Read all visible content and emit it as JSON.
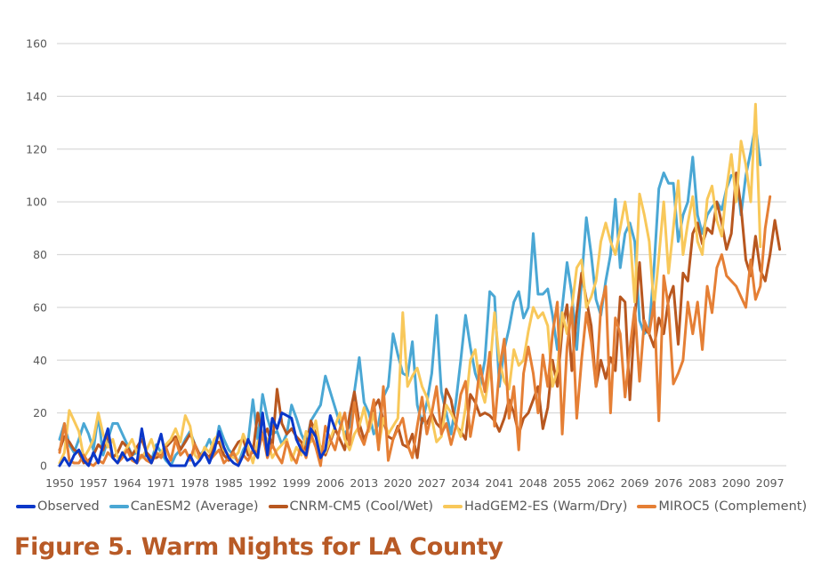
{
  "page": {
    "top_text_fragment": "",
    "figure_title": "Figure 5. Warm Nights for LA County"
  },
  "colors": {
    "Observed": "#0a37c9",
    "CanESM2 (Average)": "#4aa7d4",
    "CNRM-CM5 (Cool/Wet)": "#b8571f",
    "HadGEM2-ES (Warm/Dry)": "#f8c85a",
    "MIROC5 (Complement)": "#e57f35",
    "grid": "#d9d9d9",
    "title": "#b85a26"
  },
  "chart_data": {
    "type": "line",
    "title": "Figure 5. Warm Nights for LA County",
    "xlabel": "",
    "ylabel": "",
    "ylim": [
      0,
      160
    ],
    "yticks": [
      0,
      20,
      40,
      60,
      80,
      100,
      120,
      140,
      160
    ],
    "xlim": [
      1950,
      2100
    ],
    "xtick_labels": [
      "1950",
      "1957",
      "1964",
      "1971",
      "1978",
      "1985",
      "1992",
      "1999",
      "2006",
      "2013",
      "2020",
      "2027",
      "2034",
      "2041",
      "2048",
      "2055",
      "2062",
      "2069",
      "2076",
      "2083",
      "2090",
      "2097"
    ],
    "grid": true,
    "legend_position": "bottom",
    "x_start": 1950,
    "series": [
      {
        "name": "Observed",
        "start_year": 1950,
        "values": [
          0,
          3,
          0,
          4,
          6,
          2,
          0,
          5,
          1,
          8,
          14,
          3,
          1,
          5,
          2,
          3,
          1,
          14,
          4,
          1,
          6,
          12,
          3,
          0,
          0,
          0,
          0,
          4,
          0,
          2,
          5,
          1,
          6,
          13,
          7,
          3,
          1,
          0,
          4,
          10,
          6,
          3,
          20,
          4,
          18,
          14,
          20,
          19,
          18,
          10,
          6,
          4,
          14,
          11,
          3,
          6,
          19,
          14
        ]
      },
      {
        "name": "CanESM2 (Average)",
        "start_year": 1950,
        "values": [
          10,
          16,
          8,
          5,
          10,
          16,
          12,
          6,
          19,
          4,
          10,
          16,
          16,
          12,
          8,
          4,
          5,
          3,
          4,
          2,
          8,
          5,
          2,
          0,
          4,
          6,
          10,
          13,
          8,
          4,
          6,
          10,
          5,
          15,
          10,
          6,
          4,
          1,
          6,
          9,
          25,
          10,
          27,
          18,
          12,
          13,
          8,
          12,
          23,
          18,
          12,
          8,
          17,
          20,
          23,
          34,
          28,
          22,
          16,
          12,
          15,
          28,
          41,
          24,
          20,
          12,
          16,
          26,
          30,
          50,
          42,
          35,
          34,
          47,
          23,
          16,
          24,
          35,
          57,
          28,
          20,
          12,
          24,
          40,
          57,
          45,
          35,
          30,
          40,
          66,
          64,
          30,
          44,
          52,
          62,
          66,
          56,
          60,
          88,
          65,
          65,
          67,
          57,
          44,
          60,
          77,
          65,
          44,
          70,
          94,
          80,
          63,
          57,
          70,
          80,
          101,
          75,
          88,
          92,
          85,
          55,
          50,
          52,
          75,
          105,
          111,
          107,
          107,
          85,
          95,
          100,
          117,
          95,
          88,
          95,
          98,
          100,
          97,
          105,
          110,
          110,
          95,
          110,
          119,
          129,
          114
        ]
      },
      {
        "name": "CNRM-CM5 (Cool/Wet)",
        "start_year": 1950,
        "values": [
          6,
          11,
          9,
          6,
          5,
          1,
          2,
          4,
          8,
          6,
          12,
          3,
          5,
          9,
          7,
          4,
          7,
          10,
          5,
          3,
          3,
          4,
          7,
          9,
          11,
          6,
          9,
          12,
          8,
          4,
          5,
          3,
          8,
          9,
          4,
          2,
          6,
          9,
          10,
          4,
          5,
          20,
          11,
          14,
          7,
          29,
          16,
          12,
          14,
          11,
          9,
          6,
          17,
          12,
          7,
          4,
          9,
          14,
          10,
          6,
          19,
          28,
          16,
          10,
          14,
          22,
          25,
          17,
          11,
          10,
          15,
          8,
          7,
          12,
          3,
          18,
          16,
          20,
          16,
          14,
          29,
          25,
          15,
          13,
          10,
          27,
          24,
          19,
          20,
          19,
          17,
          13,
          18,
          25,
          20,
          12,
          18,
          20,
          25,
          30,
          14,
          22,
          40,
          30,
          52,
          61,
          36,
          58,
          73,
          63,
          53,
          30,
          40,
          33,
          41,
          36,
          64,
          62,
          25,
          56,
          77,
          52,
          50,
          45,
          56,
          50,
          63,
          68,
          46,
          73,
          70,
          88,
          92,
          84,
          90,
          88,
          100,
          92,
          82,
          88,
          111,
          98,
          78,
          72,
          87,
          74,
          70,
          80,
          93,
          82
        ]
      },
      {
        "name": "HadGEM2-ES (Warm/Dry)",
        "start_year": 1950,
        "values": [
          1,
          5,
          21,
          17,
          13,
          3,
          6,
          10,
          20,
          12,
          7,
          10,
          3,
          4,
          7,
          10,
          5,
          3,
          6,
          10,
          4,
          5,
          8,
          10,
          14,
          9,
          19,
          15,
          4,
          2,
          7,
          5,
          10,
          12,
          6,
          4,
          3,
          5,
          12,
          7,
          1,
          9,
          12,
          10,
          3,
          6,
          8,
          10,
          2,
          7,
          4,
          13,
          9,
          17,
          6,
          5,
          10,
          15,
          20,
          10,
          6,
          12,
          15,
          22,
          13,
          20,
          7,
          18,
          12,
          15,
          18,
          58,
          30,
          34,
          37,
          30,
          26,
          18,
          9,
          11,
          23,
          20,
          16,
          11,
          22,
          40,
          44,
          30,
          24,
          36,
          58,
          40,
          32,
          29,
          44,
          38,
          40,
          51,
          60,
          56,
          58,
          53,
          30,
          36,
          58,
          50,
          60,
          75,
          78,
          60,
          64,
          70,
          85,
          92,
          85,
          80,
          90,
          100,
          88,
          62,
          103,
          95,
          85,
          60,
          79,
          100,
          73,
          90,
          108,
          80,
          92,
          102,
          85,
          80,
          101,
          106,
          93,
          87,
          105,
          118,
          100,
          123,
          114,
          100,
          137,
          83
        ]
      },
      {
        "name": "MIROC5 (Complement)",
        "start_year": 1950,
        "values": [
          5,
          16,
          2,
          1,
          1,
          4,
          1,
          0,
          2,
          1,
          5,
          3,
          1,
          3,
          6,
          2,
          1,
          4,
          2,
          1,
          5,
          3,
          7,
          2,
          10,
          4,
          6,
          2,
          8,
          3,
          5,
          2,
          4,
          6,
          1,
          3,
          5,
          1,
          4,
          2,
          6,
          5,
          12,
          3,
          8,
          4,
          1,
          9,
          4,
          1,
          8,
          3,
          12,
          7,
          0,
          15,
          10,
          6,
          14,
          20,
          8,
          24,
          12,
          8,
          15,
          25,
          6,
          30,
          2,
          10,
          14,
          18,
          8,
          3,
          15,
          26,
          12,
          20,
          30,
          12,
          16,
          8,
          15,
          27,
          32,
          11,
          22,
          38,
          28,
          43,
          15,
          36,
          48,
          18,
          30,
          6,
          35,
          45,
          35,
          20,
          42,
          30,
          50,
          62,
          12,
          45,
          60,
          18,
          40,
          58,
          47,
          30,
          60,
          68,
          20,
          56,
          50,
          26,
          44,
          60,
          32,
          55,
          50,
          62,
          17,
          72,
          60,
          31,
          35,
          40,
          62,
          50,
          62,
          44,
          68,
          58,
          75,
          80,
          72,
          70,
          68,
          64,
          60,
          78,
          63,
          68,
          90,
          102
        ]
      }
    ]
  },
  "legend": {
    "items": [
      {
        "label": "Observed"
      },
      {
        "label": "CanESM2 (Average)"
      },
      {
        "label": "CNRM-CM5 (Cool/Wet)"
      },
      {
        "label": "HadGEM2-ES (Warm/Dry)"
      },
      {
        "label": "MIROC5 (Complement)"
      }
    ]
  }
}
